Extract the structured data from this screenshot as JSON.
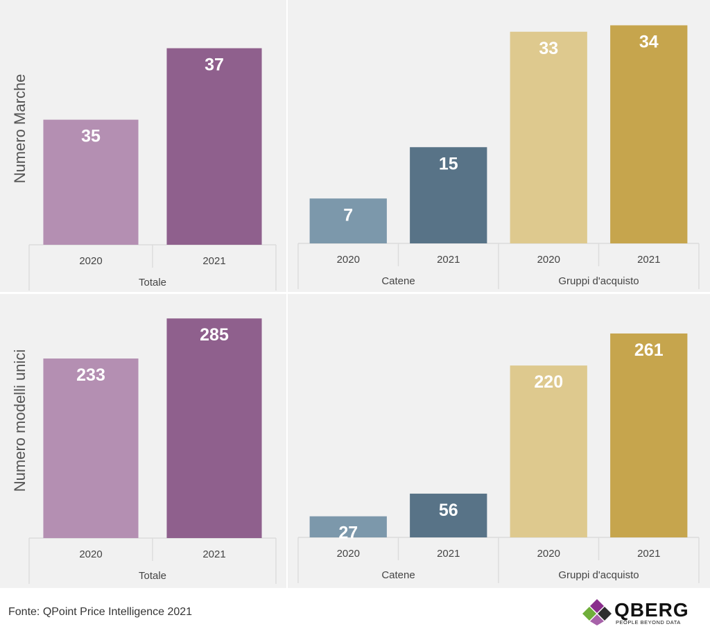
{
  "colors": {
    "totale_2020": "#b48fb2",
    "totale_2021": "#8f608d",
    "catene_2020": "#7c98ab",
    "catene_2021": "#587387",
    "gruppi_2020": "#dec98e",
    "gruppi_2021": "#c6a54d",
    "panel_bg": "#f1f1f1",
    "divider": "#dcdcdc"
  },
  "chart_data": [
    {
      "type": "bar",
      "ylabel": "Numero Marche",
      "group": "Totale",
      "categories": [
        "2020",
        "2021"
      ],
      "values": [
        35,
        37
      ],
      "ylim": [
        31.5,
        38
      ]
    },
    {
      "type": "bar",
      "ylabel": "",
      "groups": [
        {
          "name": "Catene",
          "categories": [
            "2020",
            "2021"
          ],
          "values": [
            7,
            15
          ]
        },
        {
          "name": "Gruppi d'acquisto",
          "categories": [
            "2020",
            "2021"
          ],
          "values": [
            33,
            34
          ]
        }
      ],
      "ylim": [
        0,
        36
      ]
    },
    {
      "type": "bar",
      "ylabel": "Numero modelli unici",
      "group": "Totale",
      "categories": [
        "2020",
        "2021"
      ],
      "values": [
        233,
        285
      ],
      "ylim": [
        0,
        305
      ]
    },
    {
      "type": "bar",
      "ylabel": "",
      "groups": [
        {
          "name": "Catene",
          "categories": [
            "2020",
            "2021"
          ],
          "values": [
            27,
            56
          ]
        },
        {
          "name": "Gruppi d'acquisto",
          "categories": [
            "2020",
            "2021"
          ],
          "values": [
            220,
            261
          ]
        }
      ],
      "ylim": [
        0,
        300
      ]
    }
  ],
  "footer": {
    "source_prefix": "Fonte: ",
    "source_brand": "QPoint",
    "source_suffix": " Price Intelligence 2021"
  },
  "logo": {
    "name": "QBERG",
    "tagline": "PEOPLE BEYOND DATA"
  }
}
